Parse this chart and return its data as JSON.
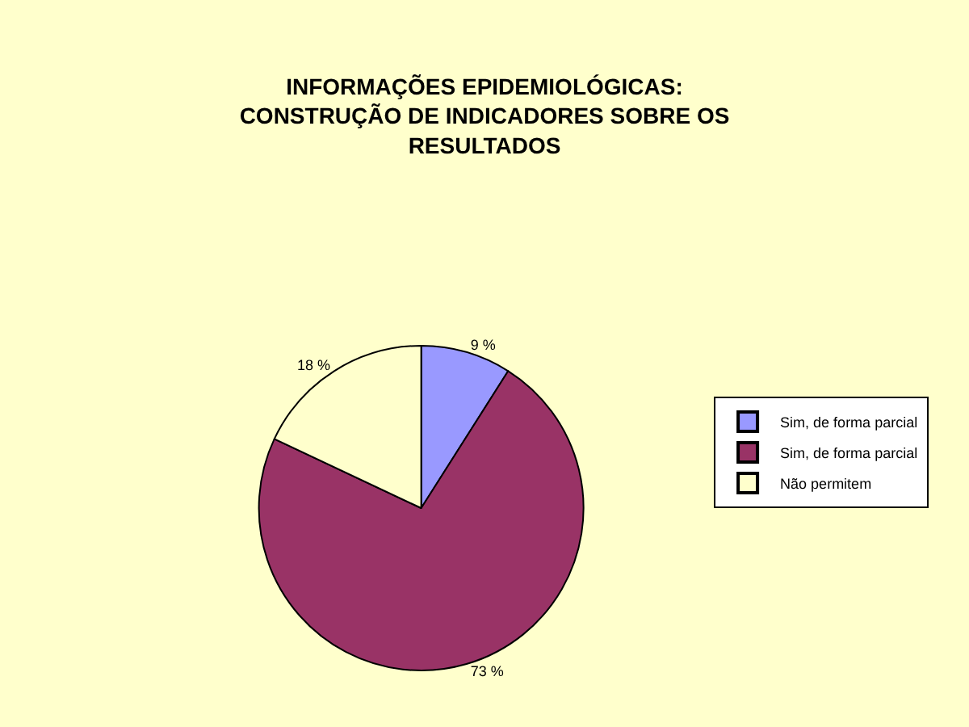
{
  "chart_data": {
    "type": "pie",
    "title": "INFORMAÇÕES EPIDEMIOLÓGICAS:\nCONSTRUÇÃO DE INDICADORES SOBRE OS\nRESULTADOS",
    "categories": [
      "Sim, de forma parcial",
      "Sim, de forma parcial",
      "Não permitem"
    ],
    "values": [
      9,
      73,
      18
    ],
    "colors": [
      "#9999ff",
      "#993366",
      "#ffffcc"
    ],
    "value_labels": [
      "9 %",
      "73 %",
      "18 %"
    ],
    "legend": "right"
  }
}
